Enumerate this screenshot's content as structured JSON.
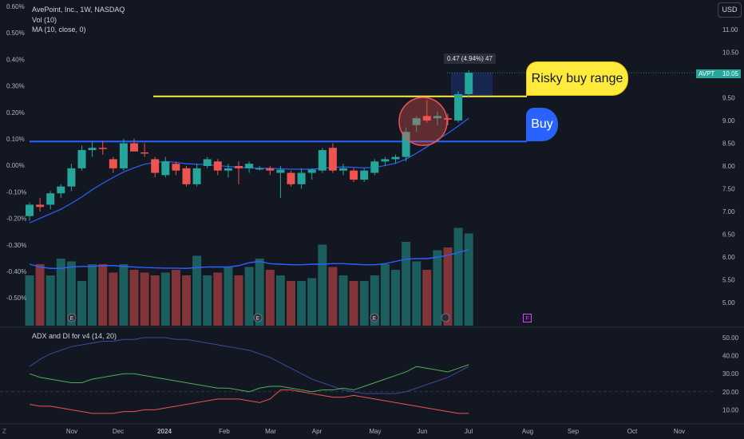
{
  "legend": {
    "symbol": "AvePoint, Inc., 1W, NASDAQ",
    "vol": "Vol (10)",
    "ma": "MA (10, close, 0)"
  },
  "adx_legend": "ADX and DI for v4 (14, 20)",
  "currency_button": "USD",
  "price_tag": {
    "ticker": "AVPT",
    "price": "10.05"
  },
  "measure_label": "0.47 (4.94%) 47",
  "callouts": {
    "risky": "Risky buy range",
    "buy": "Buy"
  },
  "corner_mark": "Z",
  "f_marker": "F",
  "colors": {
    "up": "#26a69a",
    "down": "#ef5350",
    "ma": "#2962ff",
    "yellow_line": "#ffeb3b",
    "blue_line": "#2962ff"
  },
  "chart_data": {
    "type": "candlestick",
    "left_axis_ticks": [
      "0.60%",
      "0.50%",
      "0.40%",
      "0.30%",
      "0.20%",
      "0.10%",
      "0.00%",
      "-0.10%",
      "-0.20%",
      "-0.30%",
      "-0.40%",
      "-0.50%"
    ],
    "right_axis_ticks": [
      "11.00",
      "10.50",
      "10.00",
      "9.50",
      "9.00",
      "8.50",
      "8.00",
      "7.50",
      "7.00",
      "6.50",
      "6.00",
      "5.50",
      "5.00"
    ],
    "adx_axis_ticks": [
      "50.00",
      "40.00",
      "30.00",
      "20.00",
      "10.00"
    ],
    "x_axis_labels": [
      "Nov",
      "Dec",
      "2024",
      "Feb",
      "Mar",
      "Apr",
      "May",
      "Jun",
      "Jul",
      "Aug",
      "Sep",
      "Oct",
      "Nov"
    ],
    "candles": [
      [
        6.9,
        7.2,
        6.8,
        7.15
      ],
      [
        7.15,
        7.3,
        7.0,
        7.1
      ],
      [
        7.15,
        7.45,
        7.05,
        7.4
      ],
      [
        7.4,
        7.6,
        7.3,
        7.55
      ],
      [
        7.55,
        8.05,
        7.45,
        7.95
      ],
      [
        7.95,
        8.45,
        7.9,
        8.35
      ],
      [
        8.35,
        8.55,
        8.2,
        8.4
      ],
      [
        8.4,
        8.55,
        8.25,
        8.38
      ],
      [
        8.15,
        8.2,
        7.85,
        7.95
      ],
      [
        7.95,
        8.6,
        7.9,
        8.5
      ],
      [
        8.5,
        8.6,
        8.35,
        8.32
      ],
      [
        8.3,
        8.5,
        8.2,
        8.28
      ],
      [
        8.15,
        8.2,
        7.75,
        7.85
      ],
      [
        7.8,
        8.2,
        7.75,
        8.1
      ],
      [
        8.05,
        8.1,
        7.8,
        7.9
      ],
      [
        7.95,
        8.0,
        7.55,
        7.6
      ],
      [
        7.6,
        8.05,
        7.55,
        7.95
      ],
      [
        8.0,
        8.2,
        7.95,
        8.15
      ],
      [
        8.1,
        8.15,
        7.8,
        7.9
      ],
      [
        7.9,
        8.05,
        7.75,
        7.95
      ],
      [
        8.0,
        8.1,
        7.6,
        7.95
      ],
      [
        7.95,
        8.1,
        7.85,
        8.05
      ],
      [
        7.95,
        8.0,
        7.9,
        7.95
      ],
      [
        7.95,
        8.0,
        7.8,
        7.9
      ],
      [
        7.85,
        8.0,
        7.3,
        7.92
      ],
      [
        7.85,
        7.9,
        7.55,
        7.6
      ],
      [
        7.6,
        7.95,
        7.5,
        7.85
      ],
      [
        7.85,
        7.95,
        7.7,
        7.92
      ],
      [
        7.9,
        8.4,
        7.85,
        8.35
      ],
      [
        8.4,
        8.5,
        7.85,
        7.9
      ],
      [
        7.9,
        8.05,
        7.8,
        7.95
      ],
      [
        7.9,
        7.95,
        7.65,
        7.7
      ],
      [
        7.7,
        7.95,
        7.65,
        7.9
      ],
      [
        7.85,
        8.15,
        7.8,
        8.1
      ],
      [
        8.1,
        8.2,
        8.0,
        8.15
      ],
      [
        8.15,
        8.25,
        8.05,
        8.2
      ],
      [
        8.2,
        8.85,
        8.1,
        8.75
      ],
      [
        8.9,
        9.1,
        8.75,
        9.05
      ],
      [
        9.1,
        9.45,
        8.95,
        9.0
      ],
      [
        9.05,
        9.2,
        8.9,
        9.1
      ],
      [
        9.05,
        9.15,
        8.9,
        9.02
      ],
      [
        9.0,
        9.65,
        8.95,
        9.58
      ],
      [
        9.58,
        10.1,
        9.5,
        10.05
      ]
    ],
    "volume": [
      1.8,
      2.2,
      1.8,
      2.4,
      2.3,
      1.6,
      2.2,
      2.2,
      1.9,
      2.2,
      2.0,
      1.9,
      1.8,
      1.9,
      2.0,
      1.8,
      2.5,
      1.8,
      1.9,
      2.1,
      1.8,
      2.1,
      2.4,
      2.0,
      1.8,
      1.6,
      1.6,
      1.7,
      2.9,
      2.1,
      1.8,
      1.6,
      1.6,
      1.8,
      2.2,
      2.0,
      3.0,
      2.3,
      2.0,
      2.7,
      2.8,
      3.5,
      3.3
    ],
    "ma10": [
      6.75,
      6.85,
      6.95,
      7.05,
      7.18,
      7.32,
      7.48,
      7.62,
      7.75,
      7.87,
      7.96,
      8.04,
      8.08,
      8.1,
      8.08,
      8.05,
      8.04,
      8.03,
      8.01,
      7.99,
      7.97,
      7.96,
      7.95,
      7.95,
      7.94,
      7.93,
      7.93,
      7.93,
      7.95,
      7.97,
      7.98,
      7.97,
      7.96,
      7.97,
      8.01,
      8.06,
      8.15,
      8.28,
      8.42,
      8.58,
      8.72,
      8.88,
      9.05
    ],
    "vol_ma": [
      2.2,
      2.1,
      2.05,
      2.05,
      2.1,
      2.12,
      2.12,
      2.15,
      2.15,
      2.12,
      2.1,
      2.08,
      2.07,
      2.06,
      2.06,
      2.05,
      2.08,
      2.1,
      2.1,
      2.1,
      2.15,
      2.25,
      2.3,
      2.22,
      2.2,
      2.18,
      2.18,
      2.2,
      2.2,
      2.22,
      2.22,
      2.2,
      2.18,
      2.18,
      2.22,
      2.3,
      2.38,
      2.4,
      2.4,
      2.45,
      2.52,
      2.62,
      2.72
    ],
    "adx": [
      34,
      38,
      41,
      43,
      45,
      46,
      47,
      48,
      48,
      49,
      49,
      50,
      50,
      50,
      49,
      49,
      48,
      47,
      46,
      45,
      44,
      43,
      41,
      39,
      36,
      33,
      30,
      27,
      25,
      23,
      21,
      20,
      19,
      19,
      19,
      19,
      20,
      22,
      24,
      26,
      28,
      31,
      34
    ],
    "di_plus": [
      30,
      28,
      27,
      26,
      25,
      25,
      27,
      28,
      29,
      30,
      30,
      29,
      28,
      27,
      26,
      25,
      24,
      23,
      22,
      22,
      21,
      20,
      22,
      23,
      23,
      22,
      21,
      20,
      21,
      21,
      22,
      21,
      23,
      25,
      27,
      29,
      31,
      34,
      33,
      32,
      31,
      33,
      35
    ],
    "di_minus": [
      13,
      12,
      12,
      11,
      10,
      9,
      8,
      8,
      8,
      9,
      9,
      10,
      10,
      11,
      12,
      13,
      14,
      15,
      16,
      16,
      16,
      15,
      14,
      16,
      21,
      21,
      20,
      19,
      18,
      17,
      17,
      18,
      17,
      16,
      15,
      14,
      13,
      12,
      11,
      10,
      9,
      8,
      8
    ],
    "horizontal_levels": {
      "yellow": 9.53,
      "blue": 8.54
    }
  }
}
